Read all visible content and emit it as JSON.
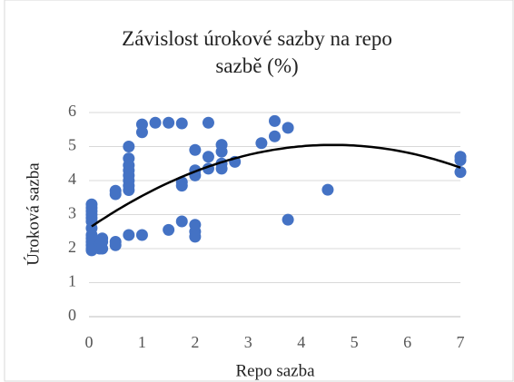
{
  "chart_data": {
    "type": "scatter",
    "title": "Závislost úrokové sazby na repo sazbě (%)",
    "x_label": "Repo sazba",
    "y_label": "Úroková sazba",
    "color": "#4472c4",
    "grid": true,
    "xlim": [
      0,
      7
    ],
    "xticks": [
      0,
      1,
      2,
      3,
      4,
      5,
      6,
      7
    ],
    "ylim": [
      0,
      6
    ],
    "yticks": [
      0,
      1,
      2,
      3,
      4,
      5,
      6
    ],
    "x": [
      0.05,
      0.05,
      0.05,
      0.05,
      0.05,
      0.05,
      0.05,
      0.05,
      0.05,
      0.05,
      0.05,
      0.05,
      0.05,
      0.2,
      0.2,
      0.25,
      0.25,
      0.25,
      0.5,
      0.5,
      0.5,
      0.5,
      0.75,
      0.75,
      0.75,
      0.75,
      0.75,
      0.75,
      0.75,
      0.75,
      0.75,
      1.0,
      1.0,
      1.0,
      1.25,
      1.5,
      1.5,
      1.75,
      1.75,
      1.75,
      1.75,
      2.0,
      2.0,
      2.0,
      2.0,
      2.0,
      2.0,
      2.25,
      2.25,
      2.25,
      2.5,
      2.5,
      2.5,
      2.5,
      2.75,
      3.25,
      3.5,
      3.5,
      3.75,
      3.75,
      4.5,
      7,
      7,
      7
    ],
    "values": [
      3.3,
      3.2,
      3.1,
      3.0,
      2.9,
      2.8,
      2.6,
      2.4,
      2.3,
      2.2,
      2.1,
      2.0,
      1.95,
      2.1,
      2.0,
      2.3,
      2.2,
      2.0,
      3.7,
      3.6,
      2.2,
      2.1,
      5.0,
      4.65,
      4.45,
      4.3,
      4.15,
      4.0,
      3.85,
      3.72,
      2.4,
      5.65,
      5.42,
      2.4,
      5.7,
      5.7,
      2.55,
      5.68,
      3.95,
      3.85,
      2.8,
      4.9,
      4.3,
      4.15,
      2.7,
      2.5,
      2.35,
      5.7,
      4.7,
      4.35,
      5.05,
      4.85,
      4.5,
      4.35,
      4.55,
      5.1,
      5.75,
      5.3,
      5.55,
      2.85,
      3.73,
      4.7,
      4.6,
      4.25
    ],
    "trendline": {
      "type": "polynomial",
      "color": "#000000",
      "coefficients": [
        2.6,
        1.065,
        -0.1158
      ]
    }
  }
}
